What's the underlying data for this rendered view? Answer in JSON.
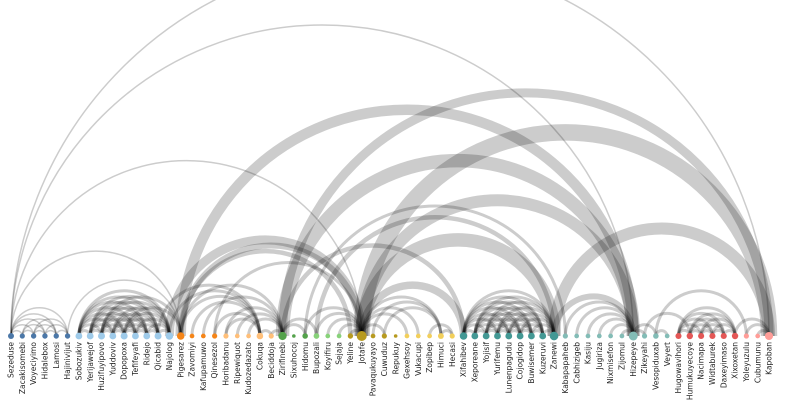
{
  "diagram": {
    "type": "arc-diagram",
    "nodes": [
      {
        "label": "Sezeduse",
        "color": "#4c78a8"
      },
      {
        "label": "Zacakisomebi",
        "color": "#4c78a8"
      },
      {
        "label": "Voyeciyimo",
        "color": "#4c78a8"
      },
      {
        "label": "Hidalebox",
        "color": "#4c78a8"
      },
      {
        "label": "Lamosi",
        "color": "#4c78a8"
      },
      {
        "label": "Hajinivijut",
        "color": "#4c78a8"
      },
      {
        "label": "Sobozukiv",
        "color": "#9ecae9"
      },
      {
        "label": "Yerijawejof",
        "color": "#9ecae9"
      },
      {
        "label": "Huzifuyipovo",
        "color": "#9ecae9"
      },
      {
        "label": "Yuddoviv",
        "color": "#9ecae9"
      },
      {
        "label": "Dopopoxa",
        "color": "#9ecae9"
      },
      {
        "label": "Tefifeyafi",
        "color": "#9ecae9"
      },
      {
        "label": "Ridejo",
        "color": "#9ecae9"
      },
      {
        "label": "Qicabid",
        "color": "#9ecae9"
      },
      {
        "label": "Najolog",
        "color": "#9ecae9"
      },
      {
        "label": "Pigesarez",
        "color": "#f58518"
      },
      {
        "label": "Zavomiyi",
        "color": "#f58518"
      },
      {
        "label": "Kafupamuwo",
        "color": "#f58518"
      },
      {
        "label": "Qinesezol",
        "color": "#f58518"
      },
      {
        "label": "Horibadanu",
        "color": "#ffbf79"
      },
      {
        "label": "Ripewiquot",
        "color": "#ffbf79"
      },
      {
        "label": "Kudozedazato",
        "color": "#ffbf79"
      },
      {
        "label": "Cokuqa",
        "color": "#ffbf79"
      },
      {
        "label": "Beciddoja",
        "color": "#ffbf79"
      },
      {
        "label": "Zirifinebi",
        "color": "#54a24b"
      },
      {
        "label": "Sixuhocoj",
        "color": "#54a24b"
      },
      {
        "label": "Hidomu",
        "color": "#54a24b"
      },
      {
        "label": "Bupozali",
        "color": "#88d27a"
      },
      {
        "label": "Koyifiru",
        "color": "#88d27a"
      },
      {
        "label": "Sejaja",
        "color": "#88d27a"
      },
      {
        "label": "Yeline",
        "color": "#b79a20"
      },
      {
        "label": "Jotafe",
        "color": "#b79a20"
      },
      {
        "label": "Pavaqukuyayo",
        "color": "#b79a20"
      },
      {
        "label": "Cuwuduz",
        "color": "#b79a20"
      },
      {
        "label": "Repukuy",
        "color": "#b79a20"
      },
      {
        "label": "Gexehsoy",
        "color": "#f2cf5b"
      },
      {
        "label": "Vukacupi",
        "color": "#f2cf5b"
      },
      {
        "label": "Zopibep",
        "color": "#f2cf5b"
      },
      {
        "label": "Himuci",
        "color": "#f2cf5b"
      },
      {
        "label": "Hecasi",
        "color": "#f2cf5b"
      },
      {
        "label": "Xifahibev",
        "color": "#439894"
      },
      {
        "label": "Xeporeane",
        "color": "#439894"
      },
      {
        "label": "Yojisif",
        "color": "#439894"
      },
      {
        "label": "Yurifemu",
        "color": "#439894"
      },
      {
        "label": "Lunenpagudu",
        "color": "#439894"
      },
      {
        "label": "Cojogidop",
        "color": "#439894"
      },
      {
        "label": "Buwisemer",
        "color": "#439894"
      },
      {
        "label": "Kuzeruvi",
        "color": "#439894"
      },
      {
        "label": "Zanewi",
        "color": "#439894"
      },
      {
        "label": "Kabapapaheb",
        "color": "#83bcb6"
      },
      {
        "label": "Cabhizigeb",
        "color": "#83bcb6"
      },
      {
        "label": "Kasiju",
        "color": "#83bcb6"
      },
      {
        "label": "Jugiriza",
        "color": "#83bcb6"
      },
      {
        "label": "Nixmisefon",
        "color": "#83bcb6"
      },
      {
        "label": "Zijomul",
        "color": "#83bcb6"
      },
      {
        "label": "Hizepeye",
        "color": "#83bcb6"
      },
      {
        "label": "Zikeyahi",
        "color": "#83bcb6"
      },
      {
        "label": "Vesopiduxab",
        "color": "#83bcb6"
      },
      {
        "label": "Veyert",
        "color": "#83bcb6"
      },
      {
        "label": "Hugowavihori",
        "color": "#e45756"
      },
      {
        "label": "Humukuyecoye",
        "color": "#e45756"
      },
      {
        "label": "Nacimapa",
        "color": "#e45756"
      },
      {
        "label": "Widtaburek",
        "color": "#e45756"
      },
      {
        "label": "Daxeyimaso",
        "color": "#e45756"
      },
      {
        "label": "Xixoxetan",
        "color": "#e45756"
      },
      {
        "label": "Yoleyuzulu",
        "color": "#ff9d98"
      },
      {
        "label": "Cubumunu",
        "color": "#ff9d98"
      },
      {
        "label": "Kapoban",
        "color": "#ff9d98"
      }
    ],
    "links": [
      [
        0,
        1,
        1
      ],
      [
        0,
        2,
        1
      ],
      [
        0,
        3,
        1
      ],
      [
        0,
        4,
        1
      ],
      [
        0,
        5,
        1
      ],
      [
        1,
        2,
        1
      ],
      [
        1,
        3,
        1
      ],
      [
        1,
        4,
        1
      ],
      [
        2,
        3,
        1
      ],
      [
        2,
        4,
        1
      ],
      [
        3,
        4,
        1
      ],
      [
        3,
        5,
        1
      ],
      [
        4,
        5,
        1
      ],
      [
        2,
        5,
        1
      ],
      [
        6,
        7,
        2
      ],
      [
        6,
        8,
        2
      ],
      [
        6,
        9,
        2
      ],
      [
        6,
        10,
        2
      ],
      [
        6,
        11,
        2
      ],
      [
        6,
        12,
        2
      ],
      [
        6,
        13,
        2
      ],
      [
        6,
        14,
        2
      ],
      [
        7,
        8,
        2
      ],
      [
        7,
        9,
        2
      ],
      [
        7,
        10,
        2
      ],
      [
        7,
        11,
        2
      ],
      [
        7,
        12,
        2
      ],
      [
        7,
        13,
        2
      ],
      [
        7,
        14,
        2
      ],
      [
        8,
        9,
        2
      ],
      [
        8,
        10,
        2
      ],
      [
        8,
        11,
        2
      ],
      [
        8,
        12,
        2
      ],
      [
        8,
        13,
        2
      ],
      [
        8,
        14,
        2
      ],
      [
        9,
        10,
        2
      ],
      [
        9,
        11,
        2
      ],
      [
        9,
        12,
        2
      ],
      [
        9,
        13,
        2
      ],
      [
        9,
        14,
        2
      ],
      [
        10,
        11,
        2
      ],
      [
        10,
        12,
        2
      ],
      [
        10,
        13,
        2
      ],
      [
        10,
        14,
        2
      ],
      [
        11,
        12,
        2
      ],
      [
        11,
        13,
        2
      ],
      [
        11,
        14,
        2
      ],
      [
        12,
        13,
        2
      ],
      [
        12,
        14,
        2
      ],
      [
        13,
        14,
        2
      ],
      [
        0,
        67,
        1
      ],
      [
        0,
        55,
        1
      ],
      [
        0,
        31,
        1
      ],
      [
        0,
        15,
        1
      ],
      [
        5,
        15,
        1
      ],
      [
        14,
        31,
        6
      ],
      [
        15,
        31,
        4
      ],
      [
        8,
        15,
        2
      ],
      [
        10,
        15,
        2
      ],
      [
        14,
        22,
        2
      ],
      [
        13,
        22,
        2
      ],
      [
        15,
        55,
        7
      ],
      [
        15,
        30,
        3
      ],
      [
        15,
        22,
        2
      ],
      [
        15,
        24,
        2
      ],
      [
        16,
        22,
        2
      ],
      [
        17,
        24,
        2
      ],
      [
        18,
        31,
        2
      ],
      [
        19,
        24,
        2
      ],
      [
        20,
        24,
        2
      ],
      [
        21,
        24,
        2
      ],
      [
        18,
        22,
        2
      ],
      [
        19,
        22,
        2
      ],
      [
        22,
        23,
        2
      ],
      [
        23,
        24,
        2
      ],
      [
        24,
        55,
        9
      ],
      [
        24,
        67,
        6
      ],
      [
        24,
        40,
        3
      ],
      [
        24,
        26,
        2
      ],
      [
        24,
        27,
        2
      ],
      [
        26,
        31,
        2
      ],
      [
        26,
        49,
        2
      ],
      [
        27,
        48,
        3
      ],
      [
        27,
        31,
        2
      ],
      [
        28,
        31,
        2
      ],
      [
        29,
        31,
        2
      ],
      [
        30,
        31,
        2
      ],
      [
        31,
        67,
        11
      ],
      [
        31,
        48,
        9
      ],
      [
        31,
        55,
        8
      ],
      [
        31,
        40,
        5
      ],
      [
        31,
        33,
        2
      ],
      [
        31,
        35,
        2
      ],
      [
        31,
        36,
        2
      ],
      [
        31,
        38,
        2
      ],
      [
        32,
        38,
        2
      ],
      [
        33,
        38,
        2
      ],
      [
        37,
        39,
        2
      ],
      [
        38,
        39,
        2
      ],
      [
        40,
        41,
        2
      ],
      [
        40,
        42,
        2
      ],
      [
        40,
        43,
        2
      ],
      [
        40,
        44,
        2
      ],
      [
        40,
        45,
        2
      ],
      [
        40,
        46,
        2
      ],
      [
        40,
        47,
        2
      ],
      [
        40,
        48,
        2
      ],
      [
        41,
        42,
        2
      ],
      [
        41,
        43,
        2
      ],
      [
        41,
        44,
        2
      ],
      [
        41,
        45,
        2
      ],
      [
        41,
        46,
        2
      ],
      [
        41,
        47,
        2
      ],
      [
        41,
        48,
        2
      ],
      [
        42,
        43,
        2
      ],
      [
        42,
        44,
        2
      ],
      [
        42,
        45,
        2
      ],
      [
        42,
        46,
        2
      ],
      [
        42,
        47,
        2
      ],
      [
        42,
        48,
        2
      ],
      [
        43,
        44,
        2
      ],
      [
        43,
        45,
        2
      ],
      [
        43,
        46,
        2
      ],
      [
        43,
        47,
        2
      ],
      [
        43,
        48,
        2
      ],
      [
        44,
        45,
        2
      ],
      [
        44,
        46,
        2
      ],
      [
        44,
        47,
        2
      ],
      [
        44,
        48,
        2
      ],
      [
        45,
        46,
        2
      ],
      [
        45,
        47,
        2
      ],
      [
        45,
        48,
        2
      ],
      [
        46,
        47,
        2
      ],
      [
        46,
        48,
        2
      ],
      [
        47,
        48,
        2
      ],
      [
        48,
        67,
        8
      ],
      [
        48,
        55,
        4
      ],
      [
        49,
        55,
        2
      ],
      [
        50,
        55,
        2
      ],
      [
        51,
        55,
        2
      ],
      [
        52,
        55,
        2
      ],
      [
        53,
        55,
        2
      ],
      [
        54,
        55,
        2
      ],
      [
        55,
        57,
        2
      ],
      [
        55,
        56,
        2
      ],
      [
        57,
        58,
        2
      ],
      [
        57,
        65,
        2
      ],
      [
        56,
        60,
        2
      ],
      [
        59,
        60,
        2
      ],
      [
        59,
        61,
        2
      ],
      [
        59,
        62,
        2
      ],
      [
        59,
        63,
        2
      ],
      [
        59,
        64,
        2
      ],
      [
        60,
        61,
        2
      ],
      [
        60,
        62,
        2
      ],
      [
        60,
        63,
        2
      ],
      [
        60,
        64,
        2
      ],
      [
        61,
        62,
        2
      ],
      [
        61,
        63,
        2
      ],
      [
        61,
        64,
        2
      ],
      [
        62,
        63,
        2
      ],
      [
        62,
        64,
        2
      ],
      [
        63,
        64,
        2
      ],
      [
        64,
        67,
        2
      ],
      [
        65,
        67,
        2
      ],
      [
        66,
        67,
        2
      ]
    ]
  }
}
